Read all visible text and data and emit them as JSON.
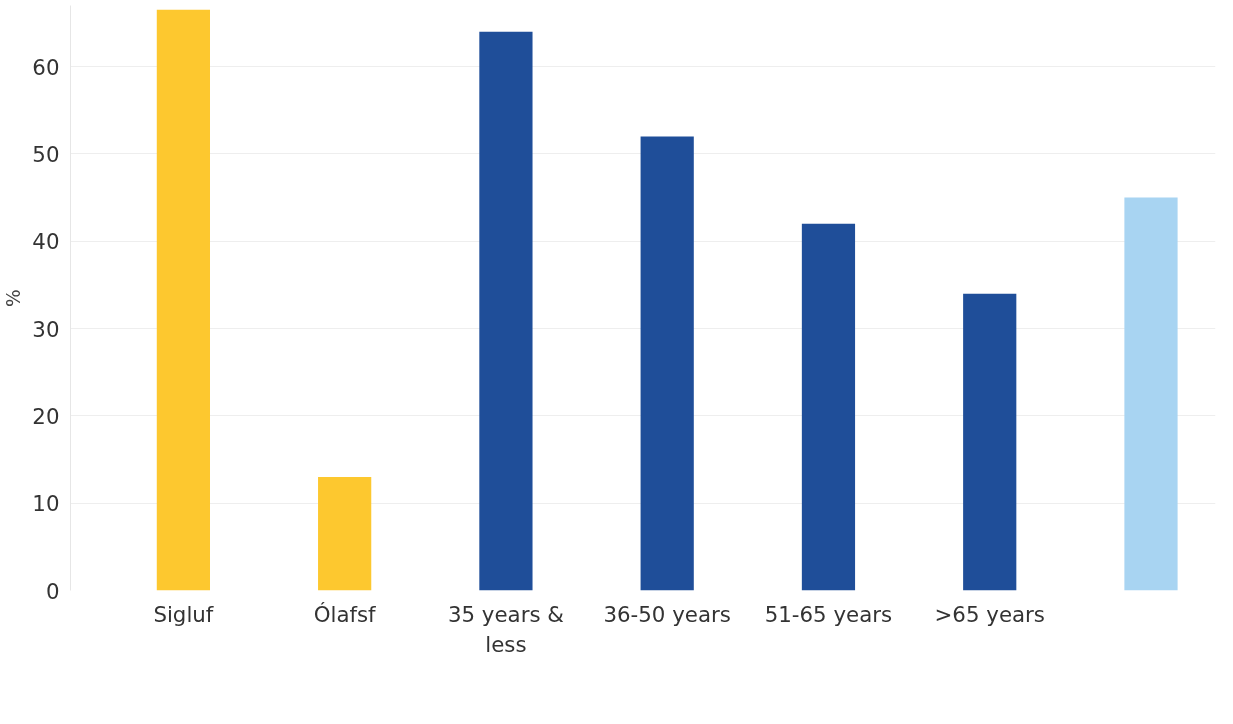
{
  "chart_data": {
    "type": "bar",
    "ylabel": "%",
    "categories": [
      "Sigluf",
      "Ólafsf",
      "35 years & less",
      "36-50 years",
      "51-65 years",
      ">65 years",
      null
    ],
    "values": [
      66.5,
      13,
      64,
      52,
      42,
      34,
      45
    ],
    "colors": [
      "#fdc82f",
      "#fdc82f",
      "#1f4e99",
      "#1f4e99",
      "#1f4e99",
      "#1f4e99",
      "#a8d4f2"
    ],
    "ylim": [
      0,
      67
    ],
    "yticks": [
      0,
      10,
      20,
      30,
      40,
      50,
      60
    ],
    "grid": "y"
  }
}
